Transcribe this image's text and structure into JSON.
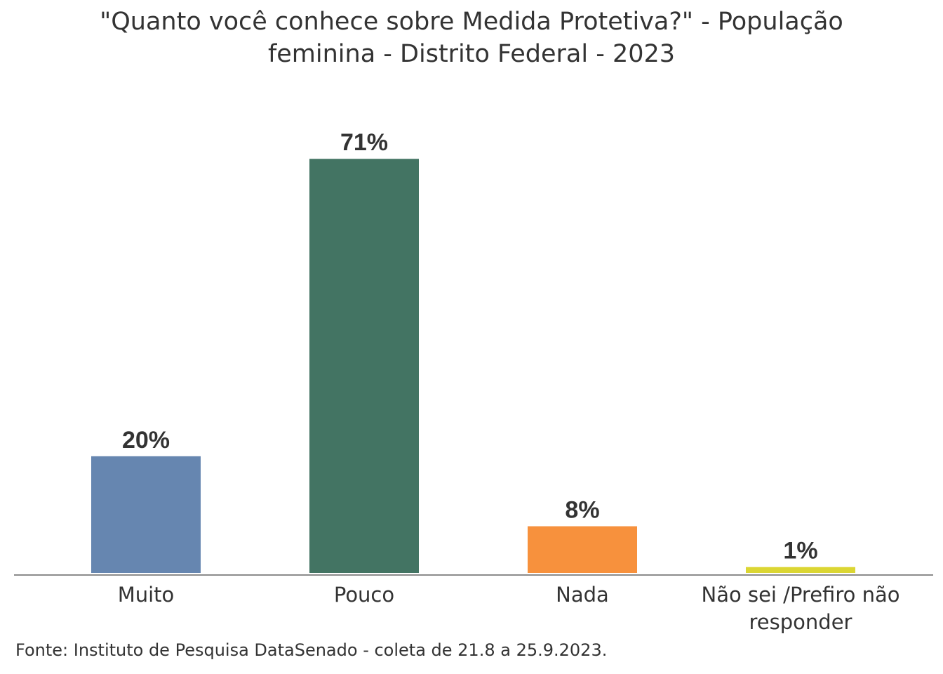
{
  "chart_data": {
    "type": "bar",
    "title_lines": [
      "\"Quanto você conhece sobre Medida Protetiva?\" - População",
      "feminina - Distrito Federal - 2023"
    ],
    "categories": [
      [
        "Muito"
      ],
      [
        "Pouco"
      ],
      [
        "Nada"
      ],
      [
        "Não sei /Prefiro não",
        "responder"
      ]
    ],
    "values": [
      20,
      71,
      8,
      1
    ],
    "value_labels": [
      "20%",
      "71%",
      "8%",
      "1%"
    ],
    "unit": "%",
    "ylim": [
      0,
      75
    ],
    "colors": [
      "#6686b0",
      "#437463",
      "#f7913d",
      "#dbd633"
    ],
    "grid": false,
    "legend": "none"
  },
  "source": "Fonte: Instituto de Pesquisa DataSenado - coleta de 21.8 a 25.9.2023."
}
